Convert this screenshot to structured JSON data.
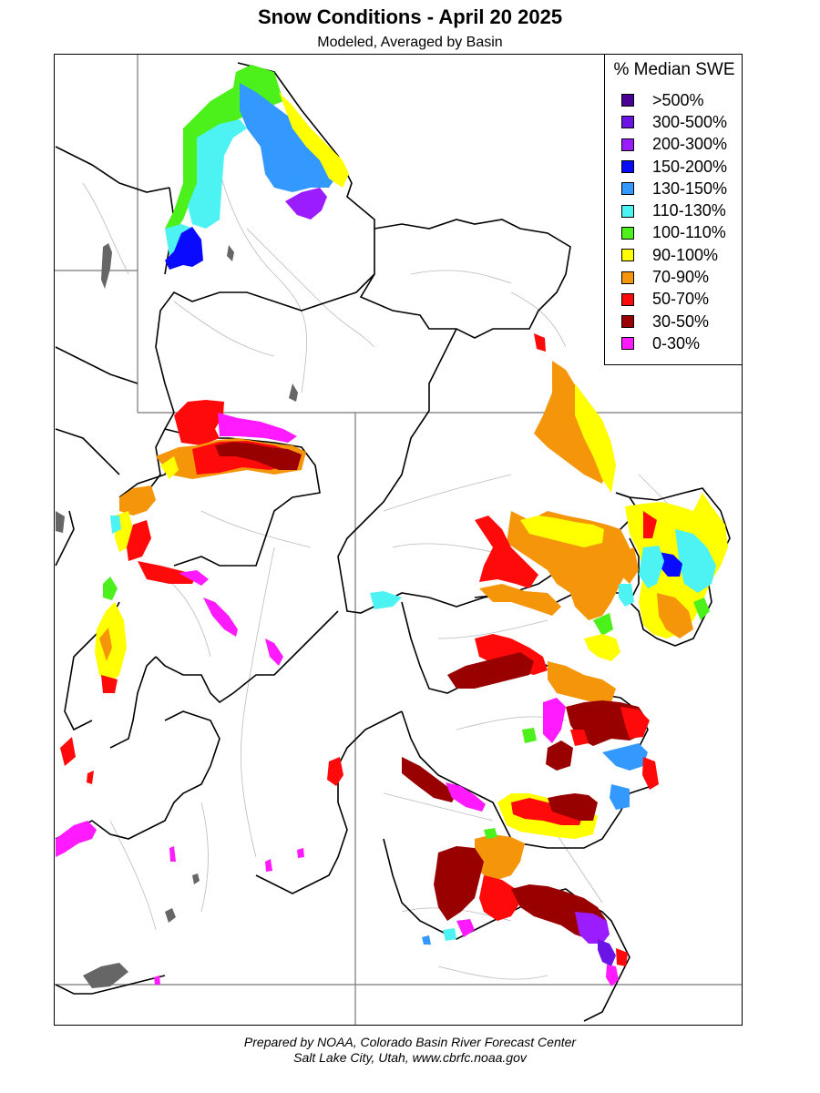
{
  "title": "Snow Conditions - April 20 2025",
  "subtitle": "Modeled, Averaged by Basin",
  "legend": {
    "title": "% Median SWE",
    "items": [
      {
        "label": ">500%",
        "color": "#4b0096"
      },
      {
        "label": "300-500%",
        "color": "#6a14e6"
      },
      {
        "label": "200-300%",
        "color": "#9b1cff"
      },
      {
        "label": "150-200%",
        "color": "#0a0aff"
      },
      {
        "label": "130-150%",
        "color": "#3399ff"
      },
      {
        "label": "110-130%",
        "color": "#4df2f2"
      },
      {
        "label": "100-110%",
        "color": "#4cf01a"
      },
      {
        "label": "90-100%",
        "color": "#ffff00"
      },
      {
        "label": "70-90%",
        "color": "#f5960a"
      },
      {
        "label": "50-70%",
        "color": "#ff0a0a"
      },
      {
        "label": "30-50%",
        "color": "#990000"
      },
      {
        "label": "0-30%",
        "color": "#ff1aff"
      }
    ]
  },
  "footer": {
    "line1": "Prepared by NOAA, Colorado Basin River Forecast Center",
    "line2": "Salt Lake City, Utah, www.cbrfc.noaa.gov"
  }
}
